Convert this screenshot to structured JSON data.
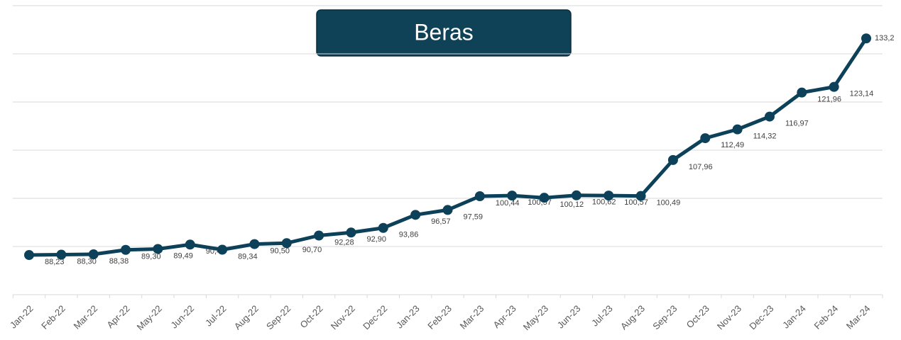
{
  "chart_data": {
    "type": "line",
    "title": "Beras",
    "categories": [
      "Jan-22",
      "Feb-22",
      "Mar-22",
      "Apr-22",
      "May-22",
      "Jun-22",
      "Jul-22",
      "Aug-22",
      "Sep-22",
      "Oct-22",
      "Nov-22",
      "Dec-22",
      "Jan-23",
      "Feb-23",
      "Mar-23",
      "Apr-23",
      "May-23",
      "Jun-23",
      "Jul-23",
      "Aug-23",
      "Sep-23",
      "Oct-23",
      "Nov-23",
      "Dec-23",
      "Jan-24",
      "Feb-24",
      "Mar-24"
    ],
    "series": [
      {
        "name": "Beras",
        "color": "#0d4159",
        "values": [
          88.23,
          88.3,
          88.38,
          89.3,
          89.49,
          90.4,
          89.34,
          90.5,
          90.7,
          92.28,
          92.9,
          93.86,
          96.57,
          97.59,
          100.44,
          100.57,
          100.12,
          100.62,
          100.57,
          100.49,
          107.96,
          112.49,
          114.32,
          116.97,
          121.96,
          123.14,
          133.2
        ],
        "value_labels": [
          "88,23",
          "88,30",
          "88,38",
          "89,30",
          "89,49",
          "90,40",
          "89,34",
          "90,50",
          "90,70",
          "92,28",
          "92,90",
          "93,86",
          "96,57",
          "97,59",
          "100,44",
          "100,57",
          "100,12",
          "100,62",
          "100,57",
          "100,49",
          "107,96",
          "112,49",
          "114,32",
          "116,97",
          "121,96",
          "123,14",
          "133,2"
        ]
      }
    ],
    "ylim": [
      80,
      140
    ],
    "yticks": [
      80,
      90,
      100,
      110,
      120,
      130,
      140
    ],
    "grid": true
  }
}
